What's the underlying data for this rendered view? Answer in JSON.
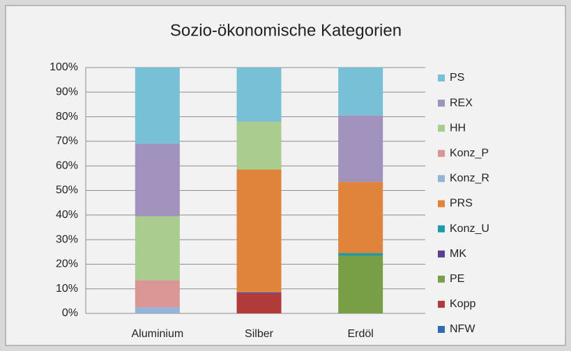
{
  "chart_data": {
    "type": "stacked_bar",
    "title": "Sozio-ökonomische Kategorien",
    "categories": [
      "Aluminium",
      "Silber",
      "Erdöl"
    ],
    "series": [
      {
        "name": "NFW",
        "color": "#2e6db0",
        "values": [
          0,
          0,
          0
        ]
      },
      {
        "name": "Kopp",
        "color": "#b13a3a",
        "values": [
          0,
          8,
          0
        ]
      },
      {
        "name": "PE",
        "color": "#77a046",
        "values": [
          0,
          0,
          23.5
        ]
      },
      {
        "name": "MK",
        "color": "#5b3e8f",
        "values": [
          0,
          0.5,
          0
        ]
      },
      {
        "name": "Konz_U",
        "color": "#1f9aa8",
        "values": [
          0,
          0,
          1
        ]
      },
      {
        "name": "PRS",
        "color": "#e0843c",
        "values": [
          0,
          50,
          29
        ]
      },
      {
        "name": "Konz_R",
        "color": "#95b3d7",
        "values": [
          2.5,
          0,
          0
        ]
      },
      {
        "name": "Konz_P",
        "color": "#d99694",
        "values": [
          11,
          0,
          0
        ]
      },
      {
        "name": "HH",
        "color": "#a9cc8f",
        "values": [
          26,
          19.5,
          0
        ]
      },
      {
        "name": "REX",
        "color": "#a092bd",
        "values": [
          29.5,
          0,
          27
        ]
      },
      {
        "name": "PS",
        "color": "#77c0d6",
        "values": [
          31,
          22,
          19.5
        ]
      }
    ],
    "ylim": [
      0,
      100
    ],
    "yticks": [
      {
        "value": 0,
        "label": "0%"
      },
      {
        "value": 10,
        "label": "10%"
      },
      {
        "value": 20,
        "label": "20%"
      },
      {
        "value": 30,
        "label": "30%"
      },
      {
        "value": 40,
        "label": "40%"
      },
      {
        "value": 50,
        "label": "50%"
      },
      {
        "value": 60,
        "label": "60%"
      },
      {
        "value": 70,
        "label": "70%"
      },
      {
        "value": 80,
        "label": "80%"
      },
      {
        "value": 90,
        "label": "90%"
      },
      {
        "value": 100,
        "label": "100%"
      }
    ],
    "grid": true,
    "legend": "right"
  }
}
